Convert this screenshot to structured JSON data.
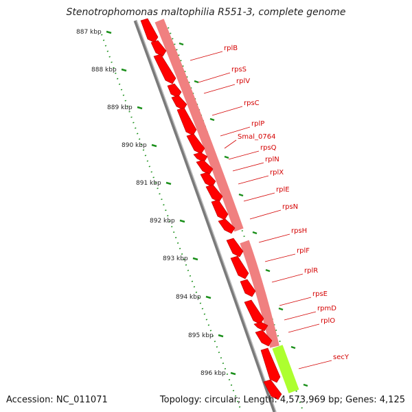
{
  "title": "Stenotrophomonas maltophilia R551-3, complete genome",
  "footer": {
    "accession": "Accession: NC_011071",
    "summary": "Topology: circular; Length: 4,573,969 bp; Genes: 4,125"
  },
  "colors": {
    "gene": "#ff0000",
    "gene_light": "#f08080",
    "highlight": "#adff2f",
    "backbone": "#808080",
    "tick": "#1a8f1a",
    "label": "#d40000"
  },
  "kbp_labels": [
    "887 kbp",
    "888 kbp",
    "889 kbp",
    "890 kbp",
    "891 kbp",
    "892 kbp",
    "893 kbp",
    "894 kbp",
    "895 kbp",
    "896 kbp"
  ],
  "genes": [
    "rplB",
    "rpsS",
    "rplV",
    "rpsC",
    "rplP",
    "Smal_0764",
    "rpsQ",
    "rplN",
    "rplX",
    "rplE",
    "rpsN",
    "rpsH",
    "rplF",
    "rplR",
    "rpsE",
    "rpmD",
    "rplO",
    "secY"
  ]
}
